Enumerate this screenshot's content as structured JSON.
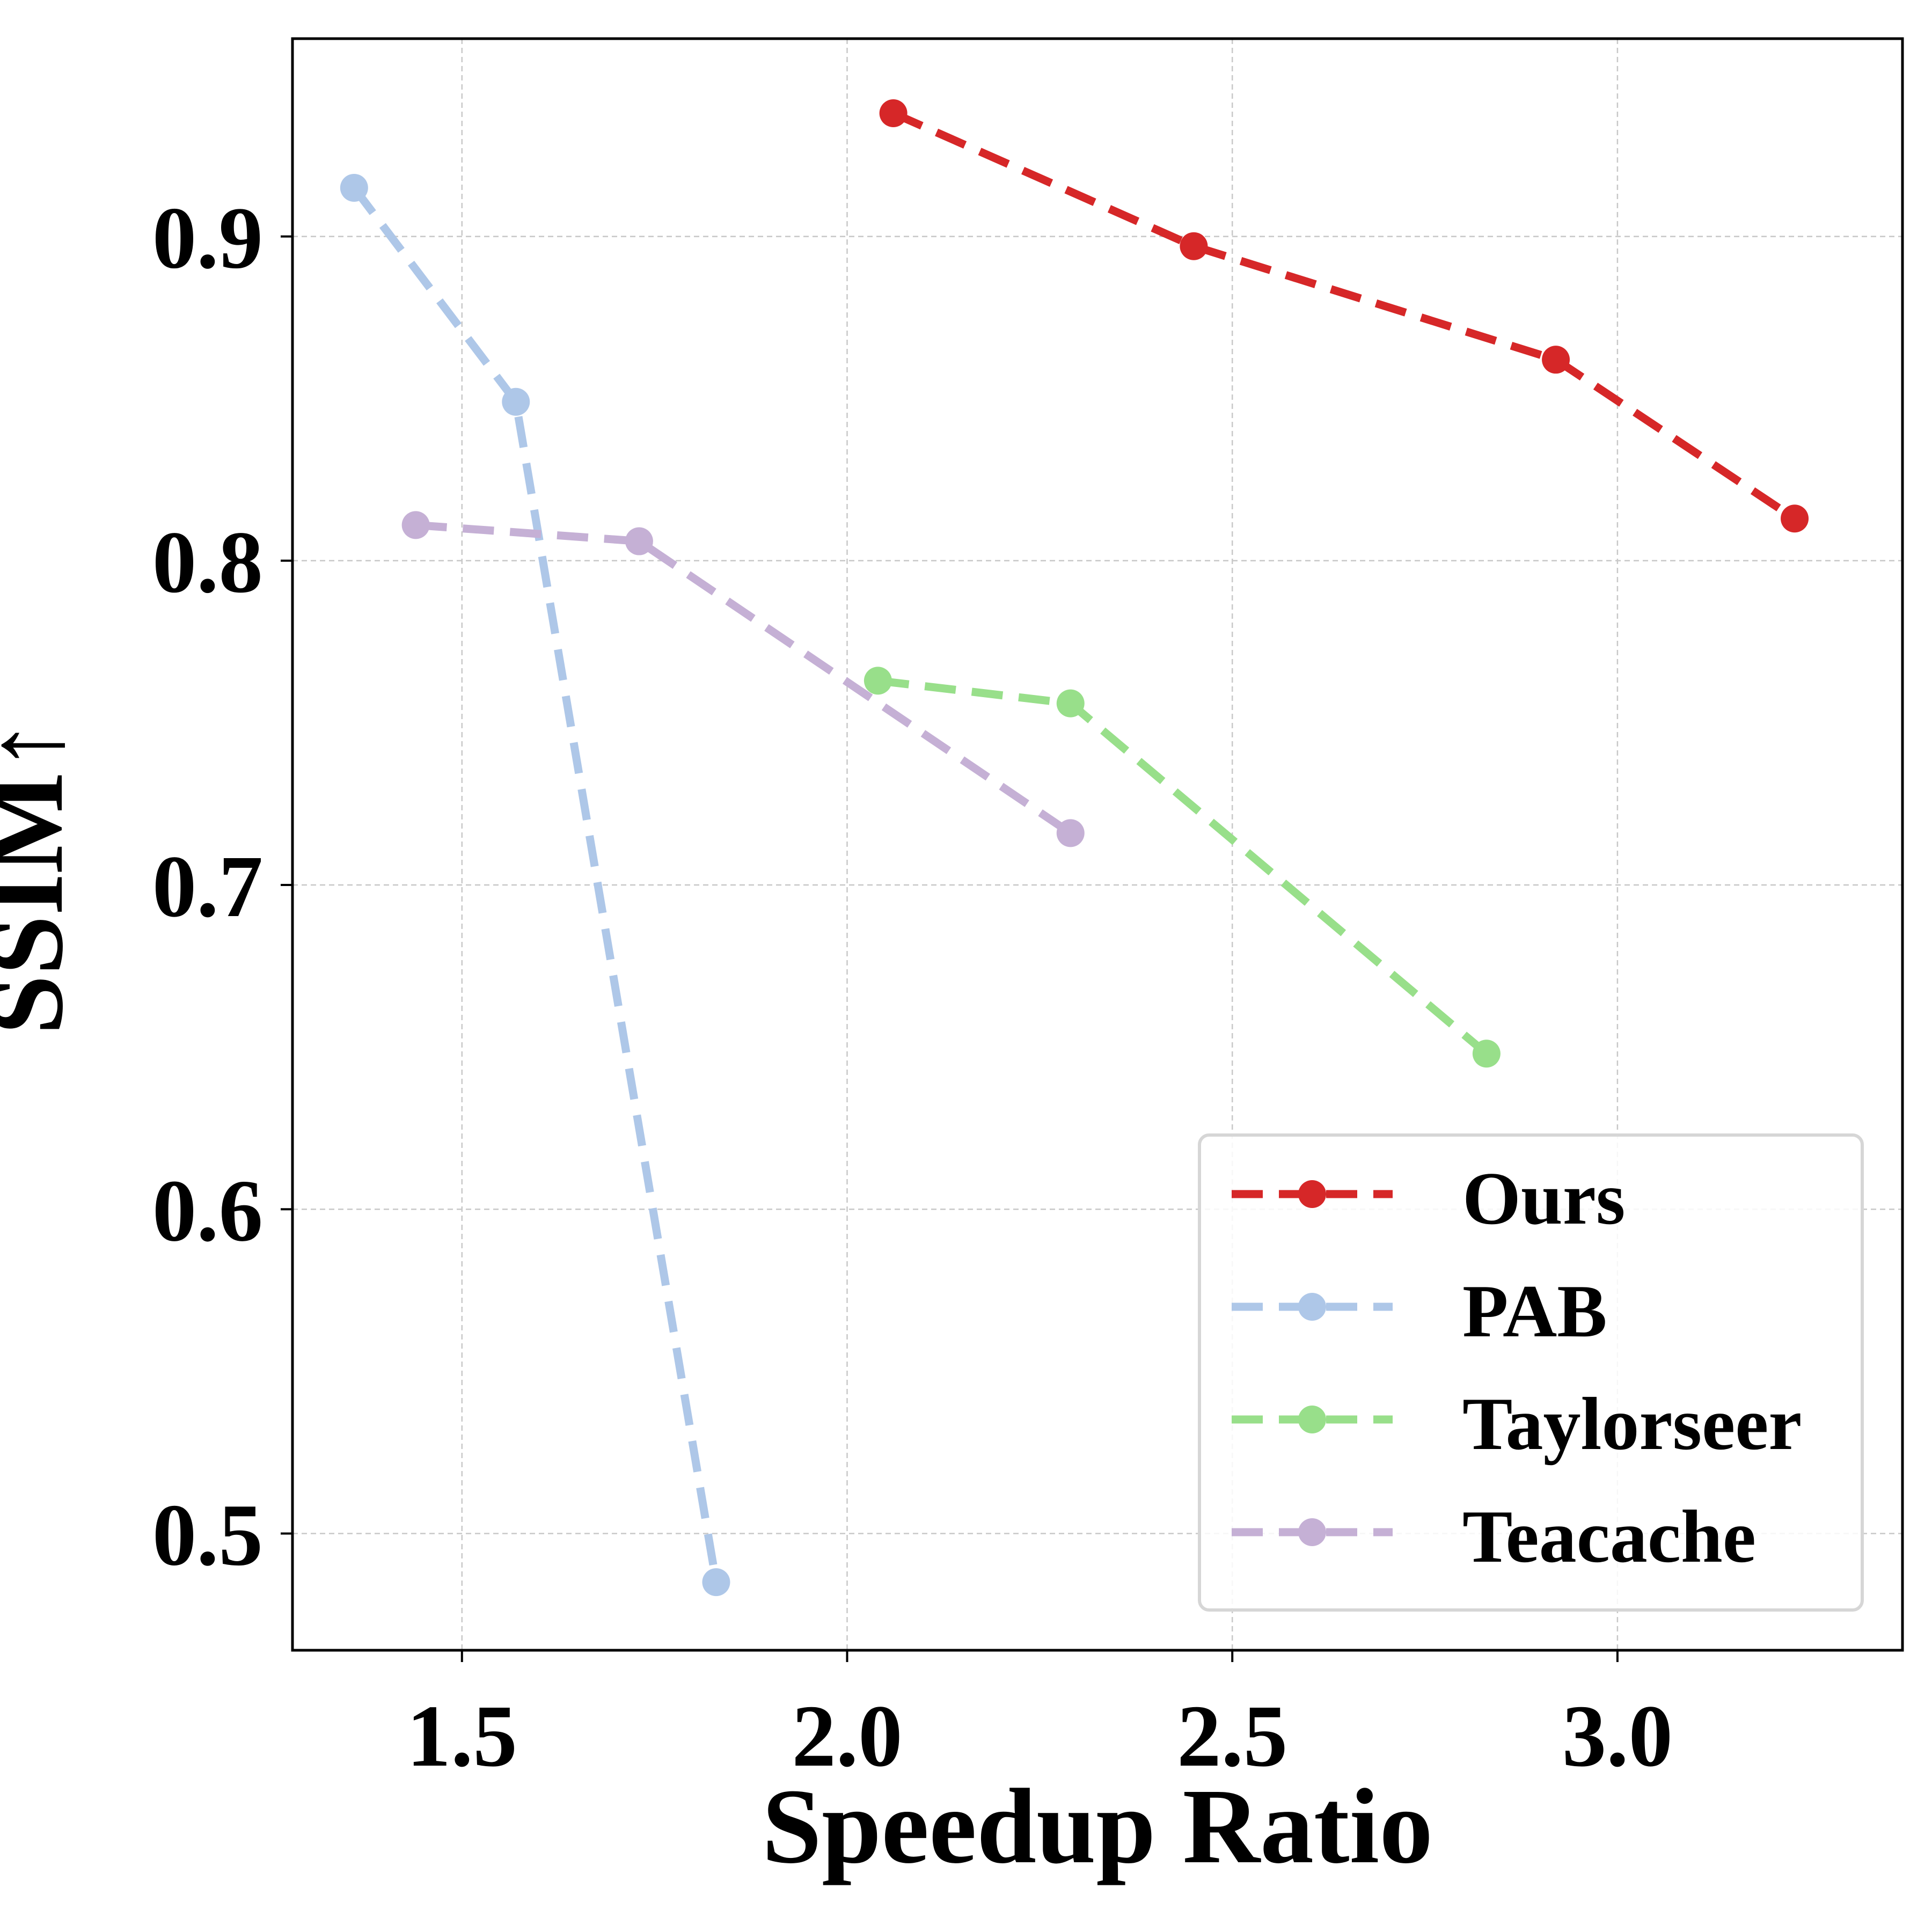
{
  "chart_data": {
    "type": "line",
    "title": "",
    "xlabel": "Speedup Ratio",
    "ylabel": "SSIM↑",
    "xlim": [
      1.28,
      3.37
    ],
    "ylim": [
      0.464,
      0.961
    ],
    "x_ticks": [
      1.5,
      2.0,
      2.5,
      3.0
    ],
    "x_tick_labels": [
      "1.5",
      "2.0",
      "2.5",
      "3.0"
    ],
    "y_ticks": [
      0.5,
      0.6,
      0.7,
      0.8,
      0.9
    ],
    "y_tick_labels": [
      "0.5",
      "0.6",
      "0.7",
      "0.8",
      "0.9"
    ],
    "grid": true,
    "legend_position": "bottom-right",
    "series": [
      {
        "name": "Ours",
        "color": "#d62728",
        "line_style": "dashed",
        "marker": "circle",
        "x": [
          2.06,
          2.45,
          2.92,
          3.23
        ],
        "y": [
          0.938,
          0.897,
          0.862,
          0.813
        ]
      },
      {
        "name": "PAB",
        "color": "#aec7e8",
        "line_style": "dashed",
        "marker": "circle",
        "x": [
          1.36,
          1.57,
          1.83
        ],
        "y": [
          0.915,
          0.849,
          0.485
        ]
      },
      {
        "name": "Taylorseer",
        "color": "#98df8a",
        "line_style": "dashed",
        "marker": "circle",
        "x": [
          2.04,
          2.29,
          2.83
        ],
        "y": [
          0.763,
          0.756,
          0.648
        ]
      },
      {
        "name": "Teacache",
        "color": "#c5b0d5",
        "line_style": "dashed",
        "marker": "circle",
        "x": [
          1.44,
          1.73,
          2.29
        ],
        "y": [
          0.811,
          0.806,
          0.716
        ]
      }
    ]
  }
}
